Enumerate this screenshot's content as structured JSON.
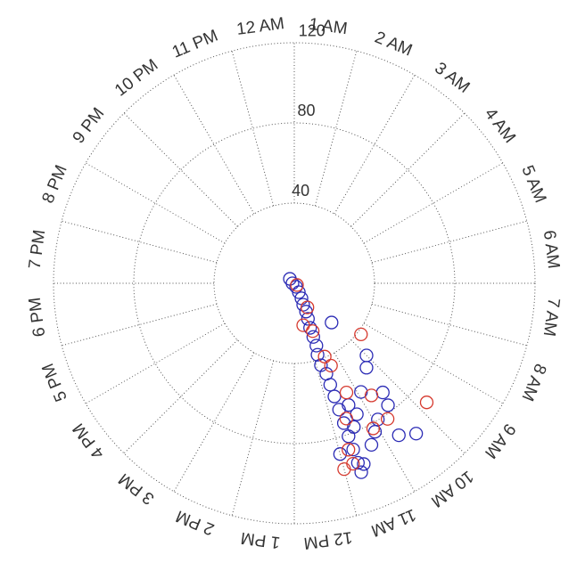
{
  "chart_data": {
    "type": "polar_scatter",
    "theta_categories": [
      "12 AM",
      "1 AM",
      "2 AM",
      "3 AM",
      "4 AM",
      "5 AM",
      "6 AM",
      "7 AM",
      "8 AM",
      "9 AM",
      "10 AM",
      "11 AM",
      "12 PM",
      "1 PM",
      "2 PM",
      "3 PM",
      "4 PM",
      "5 PM",
      "6 PM",
      "7 PM",
      "8 PM",
      "9 PM",
      "10 PM",
      "11 PM"
    ],
    "rlim": [
      0,
      120
    ],
    "rticks": [
      40,
      80,
      120
    ],
    "grid": true,
    "series": [
      {
        "color": "#2b2bb5",
        "theta": [
          21.0,
          18.0,
          10.2,
          10.2,
          10.3,
          10.5,
          10.5,
          10.6,
          10.7,
          10.7,
          10.7,
          10.8,
          10.8,
          10.7,
          10.7,
          10.7,
          10.7,
          10.7,
          10.7,
          10.7,
          10.7,
          10.7,
          10.6,
          10.3,
          10.1,
          9.9,
          9.5,
          9.7,
          9.4,
          9.0,
          9.1,
          10.4,
          10.3,
          11.0,
          10.5,
          9.3,
          9.4,
          9.9
        ],
        "r": [
          3.1,
          0.9,
          2.0,
          5.0,
          8.3,
          11.6,
          15.3,
          19.0,
          23.6,
          28.4,
          33.0,
          37.5,
          43.0,
          47.9,
          53.7,
          59.9,
          66.9,
          74.0,
          81.0,
          88.0,
          95.0,
          100.0,
          96.6,
          89.3,
          84.3,
          79.7,
          76.7,
          92.0,
          96.5,
          50.9,
          27.0,
          66.5,
          72.4,
          88.2,
          77.6,
          55.4,
          70.1,
          63.6
        ]
      },
      {
        "color": "#d63a2f",
        "theta": [
          8.2,
          10.1,
          10.6,
          11.2,
          10.5,
          10.4,
          10.3,
          10.6,
          10.8,
          11.0,
          9.7,
          10.1,
          9.7,
          8.8,
          8.5,
          10.8
        ],
        "r": [
          1.6,
          13.7,
          25.6,
          21.4,
          39.6,
          45.0,
          60.4,
          72.3,
          87.3,
          96.0,
          67.9,
          82.4,
          82.1,
          88.8,
          41.9,
          94.7
        ]
      }
    ]
  }
}
